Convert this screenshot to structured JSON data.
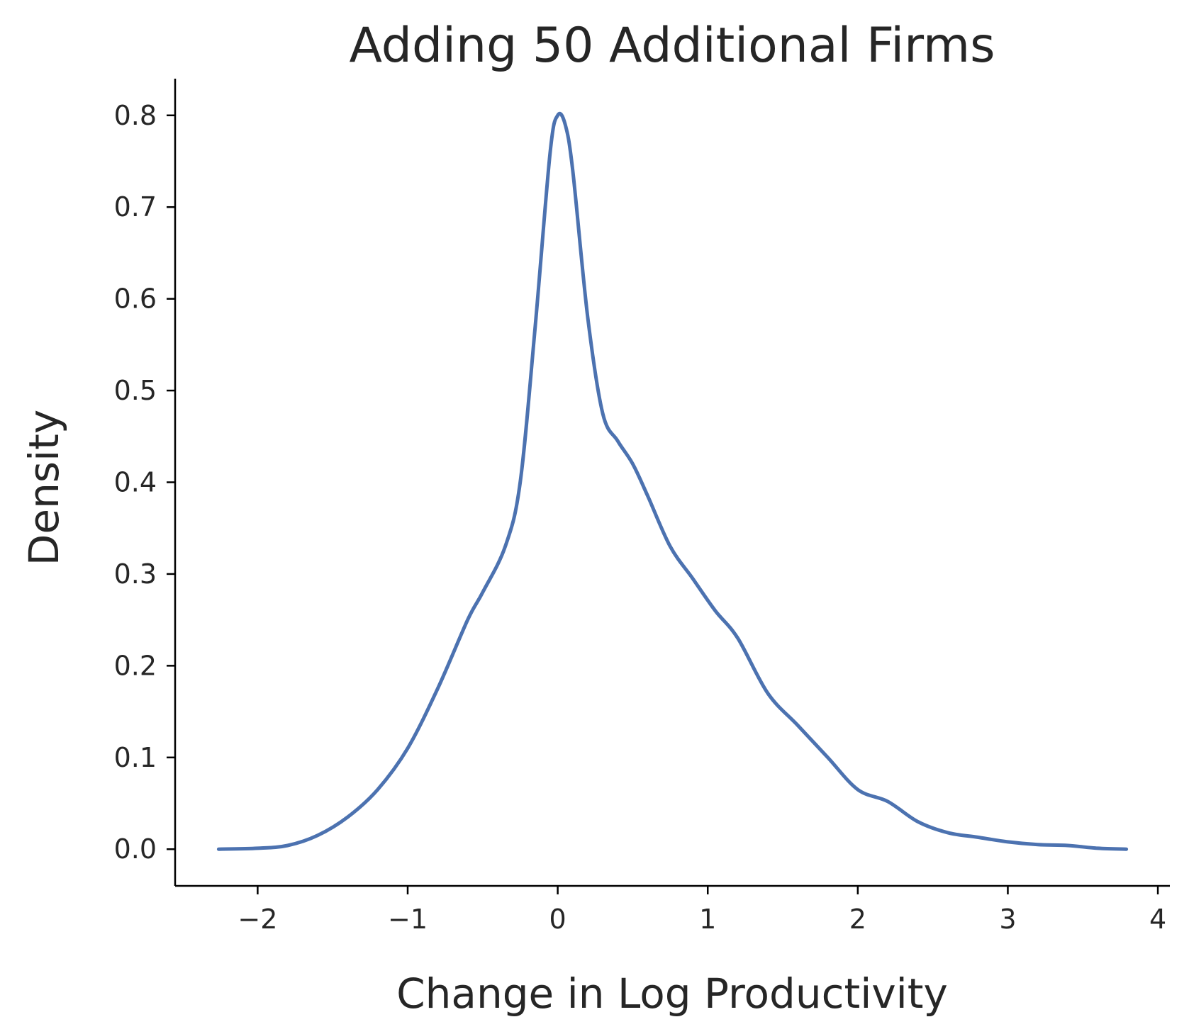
{
  "chart_data": {
    "type": "line",
    "title": "Adding 50 Additional Firms",
    "xlabel": "Change in Log Productivity",
    "ylabel": "Density",
    "xlim": [
      -2.55,
      4.08
    ],
    "ylim": [
      -0.04,
      0.84
    ],
    "xticks": [
      -2,
      -1,
      0,
      1,
      2,
      3,
      4
    ],
    "xtick_labels": [
      "−2",
      "−1",
      "0",
      "1",
      "2",
      "3",
      "4"
    ],
    "yticks": [
      0.0,
      0.1,
      0.2,
      0.3,
      0.4,
      0.5,
      0.6,
      0.7,
      0.8
    ],
    "ytick_labels": [
      "0.0",
      "0.1",
      "0.2",
      "0.3",
      "0.4",
      "0.5",
      "0.6",
      "0.7",
      "0.8"
    ],
    "grid": false,
    "colors": {
      "line": "#4c72b0",
      "axis": "#000000",
      "text": "#262626"
    },
    "series": [
      {
        "x": [
          -2.26,
          -2.0,
          -1.8,
          -1.6,
          -1.4,
          -1.2,
          -1.0,
          -0.8,
          -0.6,
          -0.5,
          -0.35,
          -0.25,
          -0.15,
          -0.05,
          0.0,
          0.05,
          0.1,
          0.2,
          0.3,
          0.4,
          0.5,
          0.6,
          0.75,
          0.9,
          1.05,
          1.2,
          1.4,
          1.6,
          1.8,
          2.0,
          2.2,
          2.4,
          2.6,
          2.8,
          3.0,
          3.2,
          3.4,
          3.6,
          3.79
        ],
        "y": [
          0.0,
          0.001,
          0.004,
          0.015,
          0.035,
          0.065,
          0.11,
          0.175,
          0.25,
          0.28,
          0.33,
          0.4,
          0.57,
          0.76,
          0.8,
          0.79,
          0.74,
          0.58,
          0.475,
          0.445,
          0.42,
          0.385,
          0.33,
          0.295,
          0.26,
          0.23,
          0.17,
          0.135,
          0.1,
          0.065,
          0.052,
          0.03,
          0.018,
          0.013,
          0.008,
          0.005,
          0.004,
          0.001,
          0.0
        ]
      }
    ]
  }
}
